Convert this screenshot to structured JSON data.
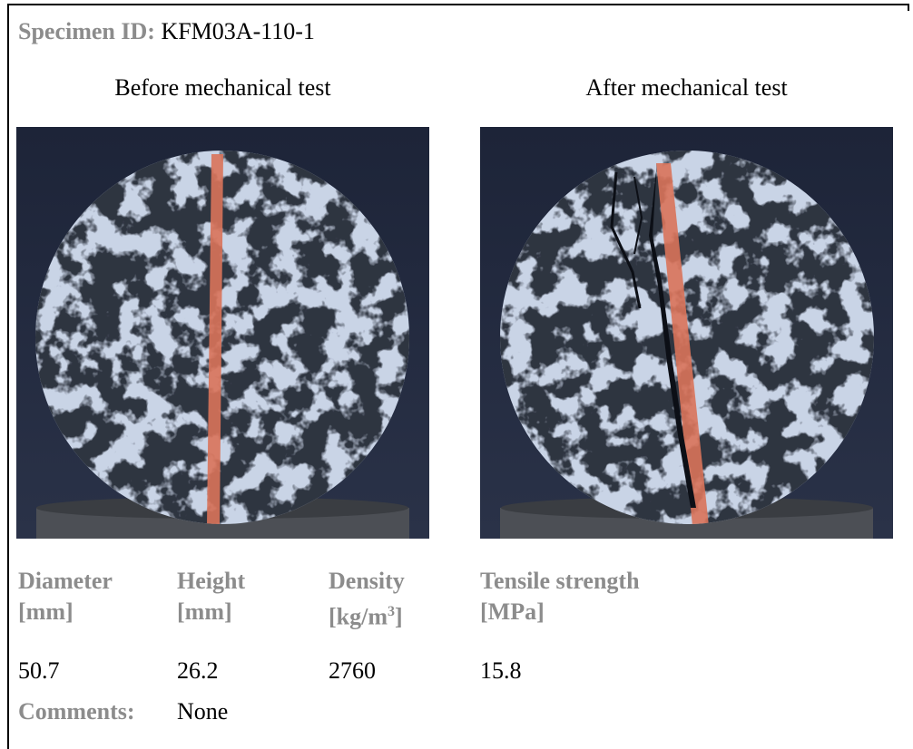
{
  "header": {
    "specimen_label": "Specimen ID:",
    "specimen_id": "KFM03A-110-1"
  },
  "photos": [
    {
      "caption": "Before mechanical test"
    },
    {
      "caption": "After mechanical test"
    }
  ],
  "table": {
    "headers": [
      {
        "name": "Diameter",
        "unit": "[mm]"
      },
      {
        "name": "Height",
        "unit": "[mm]"
      },
      {
        "name": "Density",
        "unit_prefix": "[kg/m",
        "unit_superscript": "3",
        "unit_suffix": "]"
      },
      {
        "name": "Tensile strength",
        "unit": "[MPa]"
      }
    ],
    "values": [
      "50.7",
      "26.2",
      "2760",
      "15.8"
    ]
  },
  "comments": {
    "label": "Comments:",
    "text": "None"
  }
}
